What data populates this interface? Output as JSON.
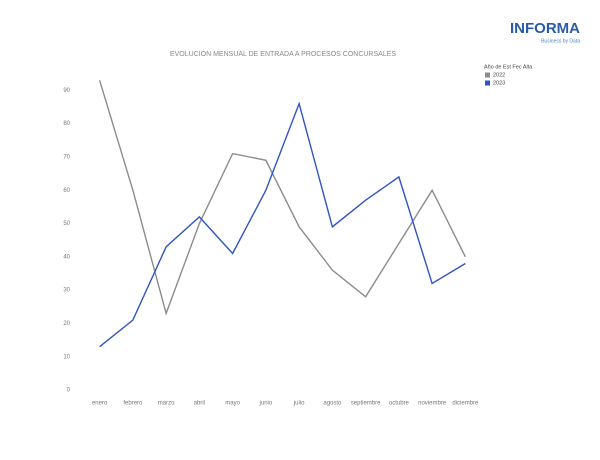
{
  "logo": {
    "name": "INFORMA",
    "tagline": "Business by Data"
  },
  "chart_data": {
    "type": "line",
    "title": "EVOLUCIÓN MENSUAL DE ENTRADA A PROCESOS CONCURSALES",
    "legend_title": "Año de Est Fec Alta",
    "legend_position": "top-right",
    "grid": false,
    "categories": [
      "enero",
      "febrero",
      "marzo",
      "abril",
      "mayo",
      "junio",
      "julio",
      "agosto",
      "septiembre",
      "octubre",
      "noviembre",
      "diciembre"
    ],
    "series": [
      {
        "name": "2022",
        "color": "#8c8c8c",
        "values": [
          93,
          60,
          23,
          50,
          71,
          69,
          49,
          36,
          28,
          44,
          60,
          40
        ]
      },
      {
        "name": "2023",
        "color": "#2f55c4",
        "values": [
          13,
          21,
          43,
          52,
          41,
          60,
          86,
          49,
          57,
          64,
          32,
          38
        ]
      }
    ],
    "ylim": [
      0,
      95
    ],
    "yticks": [
      0,
      10,
      20,
      30,
      40,
      50,
      60,
      70,
      80,
      90
    ]
  }
}
